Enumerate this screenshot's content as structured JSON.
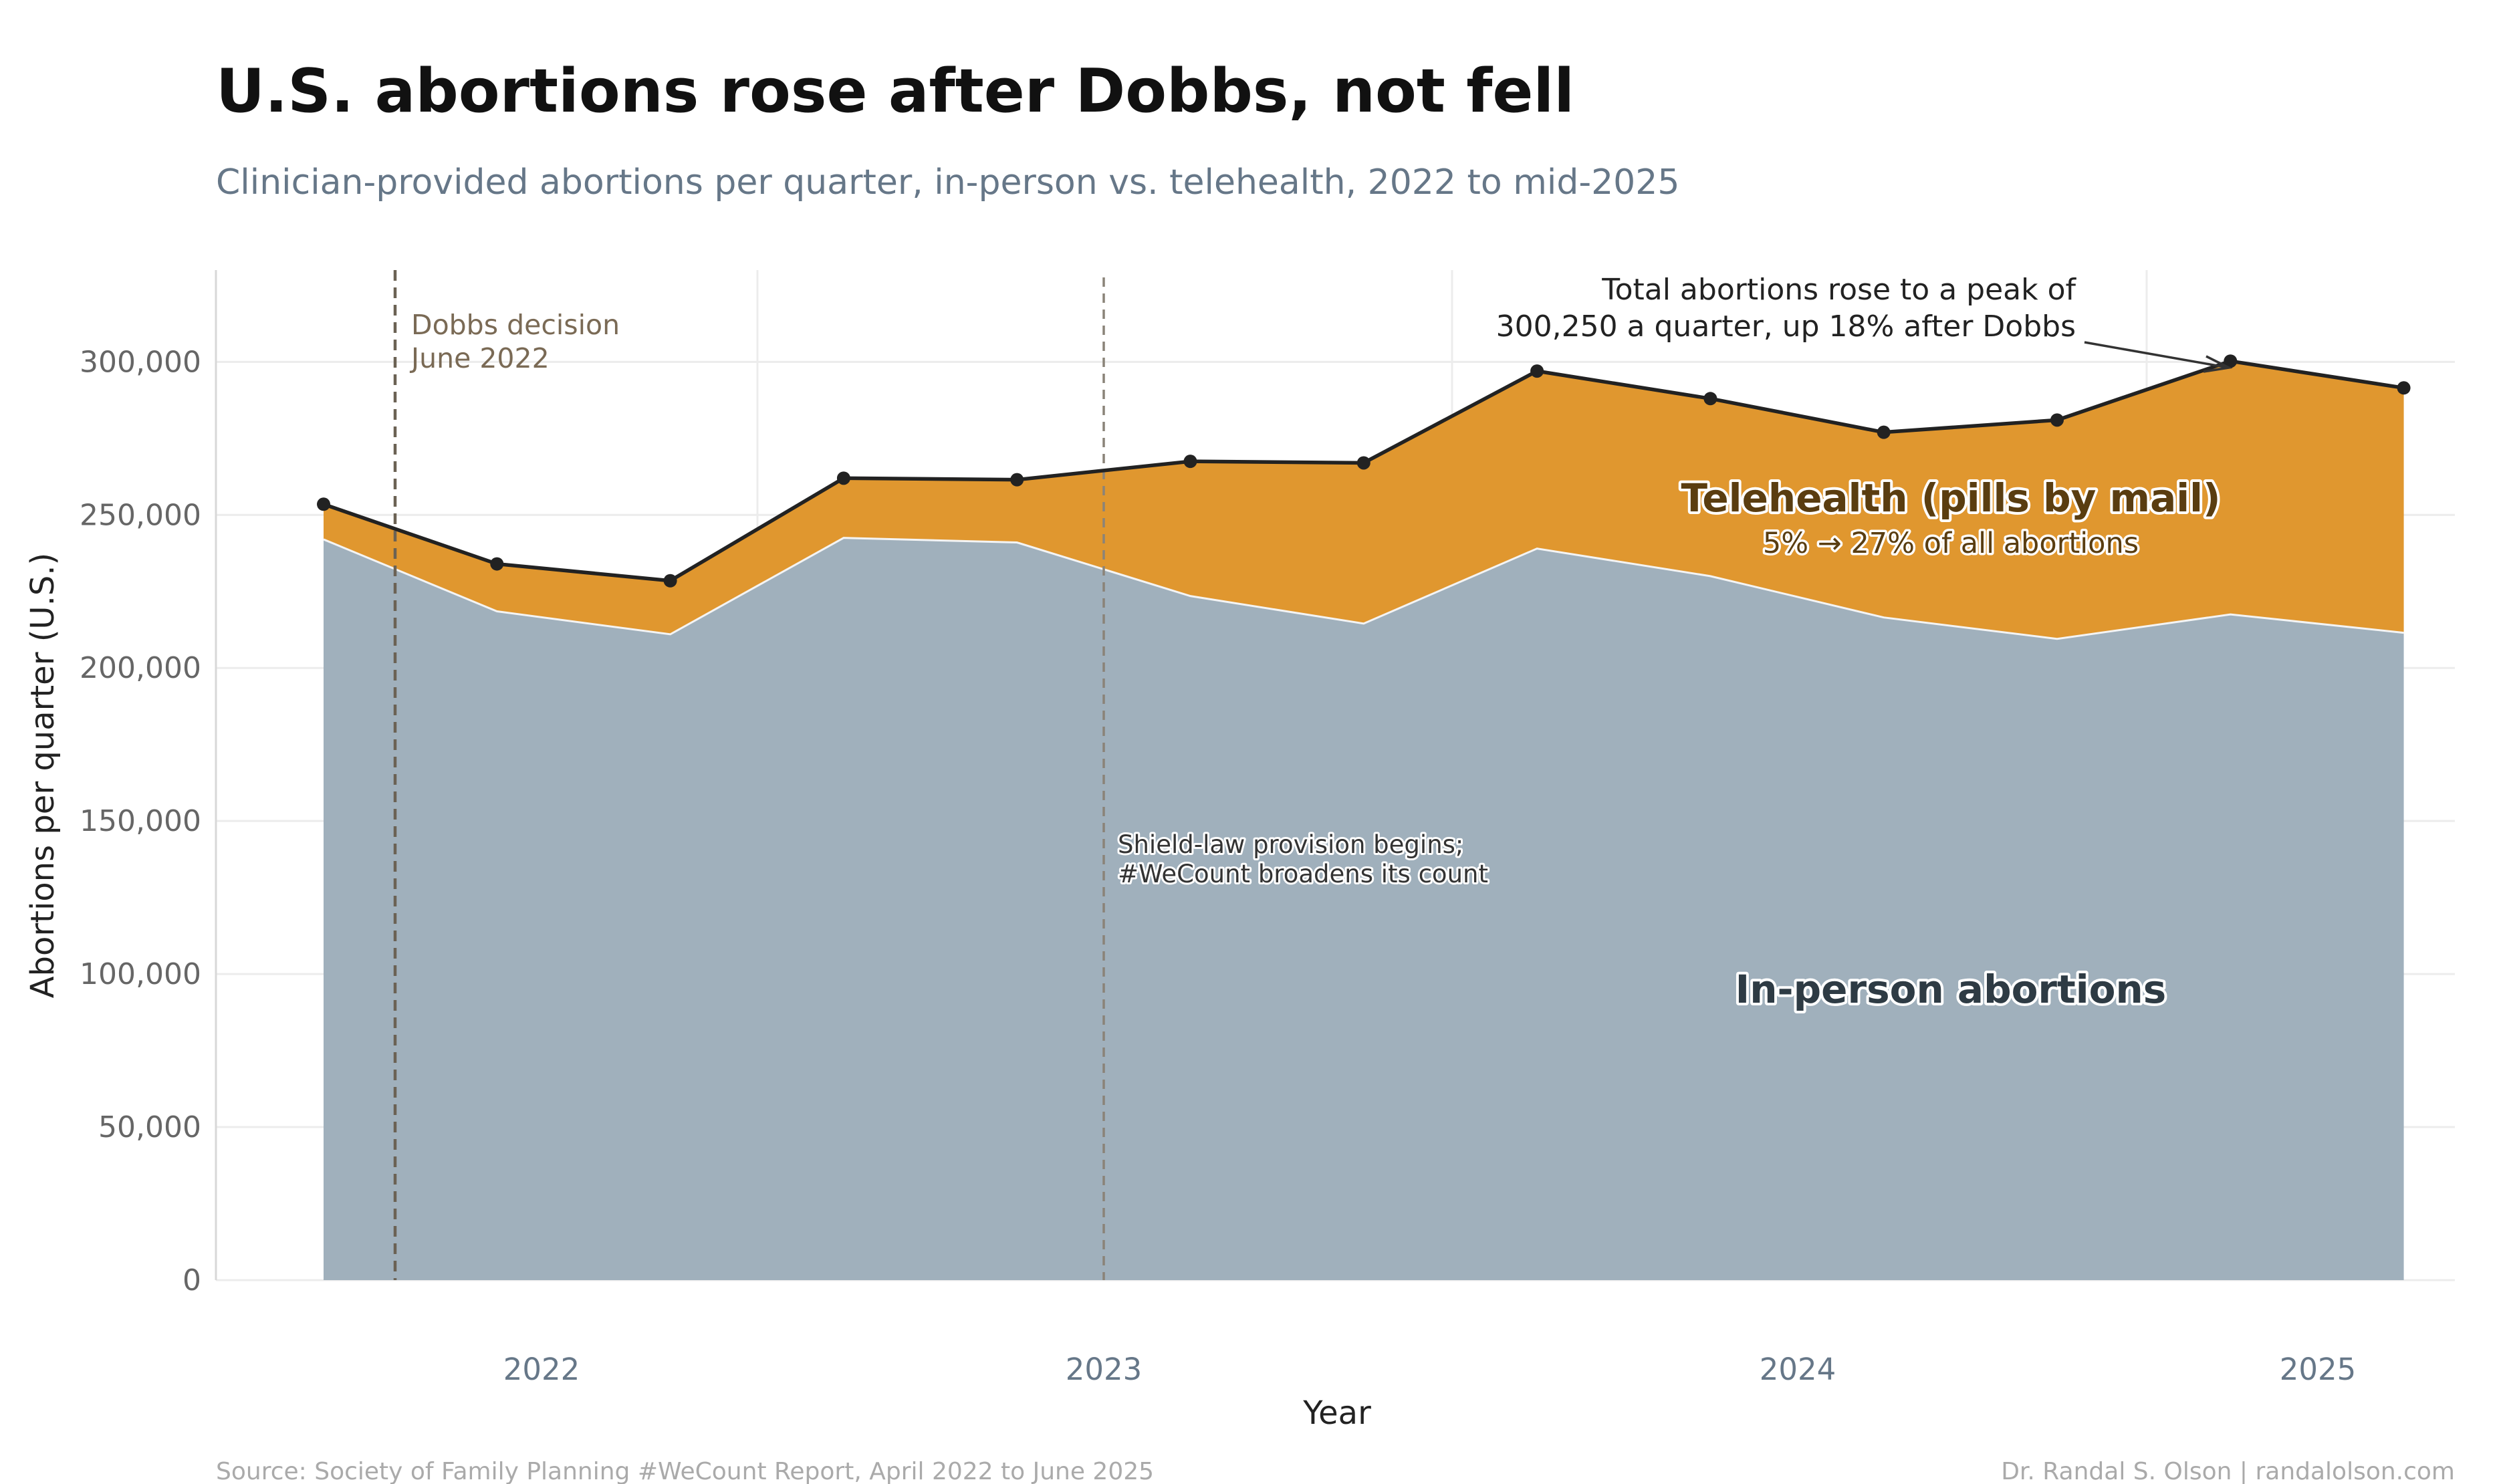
{
  "title": "U.S. abortions rose after Dobbs, not fell",
  "subtitle": "Clinician-provided abortions per quarter, in-person vs. telehealth, 2022 to mid-2025",
  "footer": {
    "source": "Source: Society of Family Planning #WeCount Report, April 2022 to June 2025",
    "credit": "Dr. Randal S. Olson  |  randalolson.com"
  },
  "colors": {
    "in_person": "#a0b0bc",
    "telehealth": "#e0972f",
    "total_line": "#222222",
    "grid": "#ececec"
  },
  "chart_data": {
    "type": "area",
    "title": "U.S. abortions rose after Dobbs, not fell",
    "xlabel": "Year",
    "ylabel": "Abortions per quarter (U.S.)",
    "x": [
      "2022-Q2",
      "2022-Q3",
      "2022-Q4",
      "2023-Q1",
      "2023-Q2",
      "2023-Q3",
      "2023-Q4",
      "2024-Q1",
      "2024-Q2",
      "2024-Q3",
      "2024-Q4",
      "2025-Q1",
      "2025-Q2"
    ],
    "x_tick_labels": [
      "2022",
      "2023",
      "2024",
      "2025"
    ],
    "ylim": [
      0,
      330000
    ],
    "y_ticks": [
      0,
      50000,
      100000,
      150000,
      200000,
      250000,
      300000
    ],
    "y_tick_labels": [
      "0",
      "50,000",
      "100,000",
      "150,000",
      "200,000",
      "250,000",
      "300,000"
    ],
    "grid": true,
    "stacked": true,
    "series": [
      {
        "name": "In-person abortions",
        "values": [
          242000,
          218500,
          211000,
          242500,
          241000,
          223500,
          214500,
          239000,
          230000,
          216500,
          209500,
          217500,
          211500
        ]
      },
      {
        "name": "Telehealth (pills by mail)",
        "values": [
          11500,
          15500,
          17500,
          19500,
          20500,
          44000,
          52500,
          58000,
          58000,
          60500,
          71500,
          82750,
          80000
        ]
      }
    ],
    "totals": [
      253500,
      234000,
      228500,
      262000,
      261500,
      267500,
      267000,
      297000,
      288000,
      277000,
      281000,
      300250,
      291500
    ],
    "annotations": {
      "dobbs": [
        "Dobbs decision",
        "June 2022"
      ],
      "shield": [
        "Shield-law provision begins;",
        "#WeCount broadens its count"
      ],
      "peak": [
        "Total abortions rose to a peak of",
        "300,250 a quarter, up 18% after Dobbs"
      ],
      "telehealth_label": "Telehealth (pills by mail)",
      "telehealth_sub": "5% → 27% of all abortions",
      "in_person_label": "In-person abortions"
    }
  }
}
